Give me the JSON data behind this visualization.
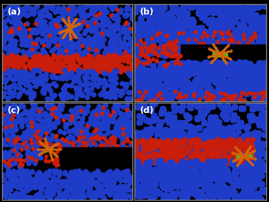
{
  "background_color": "#000000",
  "panel_labels": [
    "(a)",
    "(b)",
    "(c)",
    "(d)"
  ],
  "label_color": "#ffffff",
  "label_fontsize": 9,
  "blue": [
    30,
    60,
    200
  ],
  "red": [
    200,
    30,
    10
  ],
  "orange": [
    210,
    100,
    10
  ],
  "green": [
    60,
    200,
    30
  ],
  "black": [
    0,
    0,
    0
  ],
  "border_color": "#888888",
  "figsize": [
    3.9,
    2.93
  ],
  "dpi": 100
}
